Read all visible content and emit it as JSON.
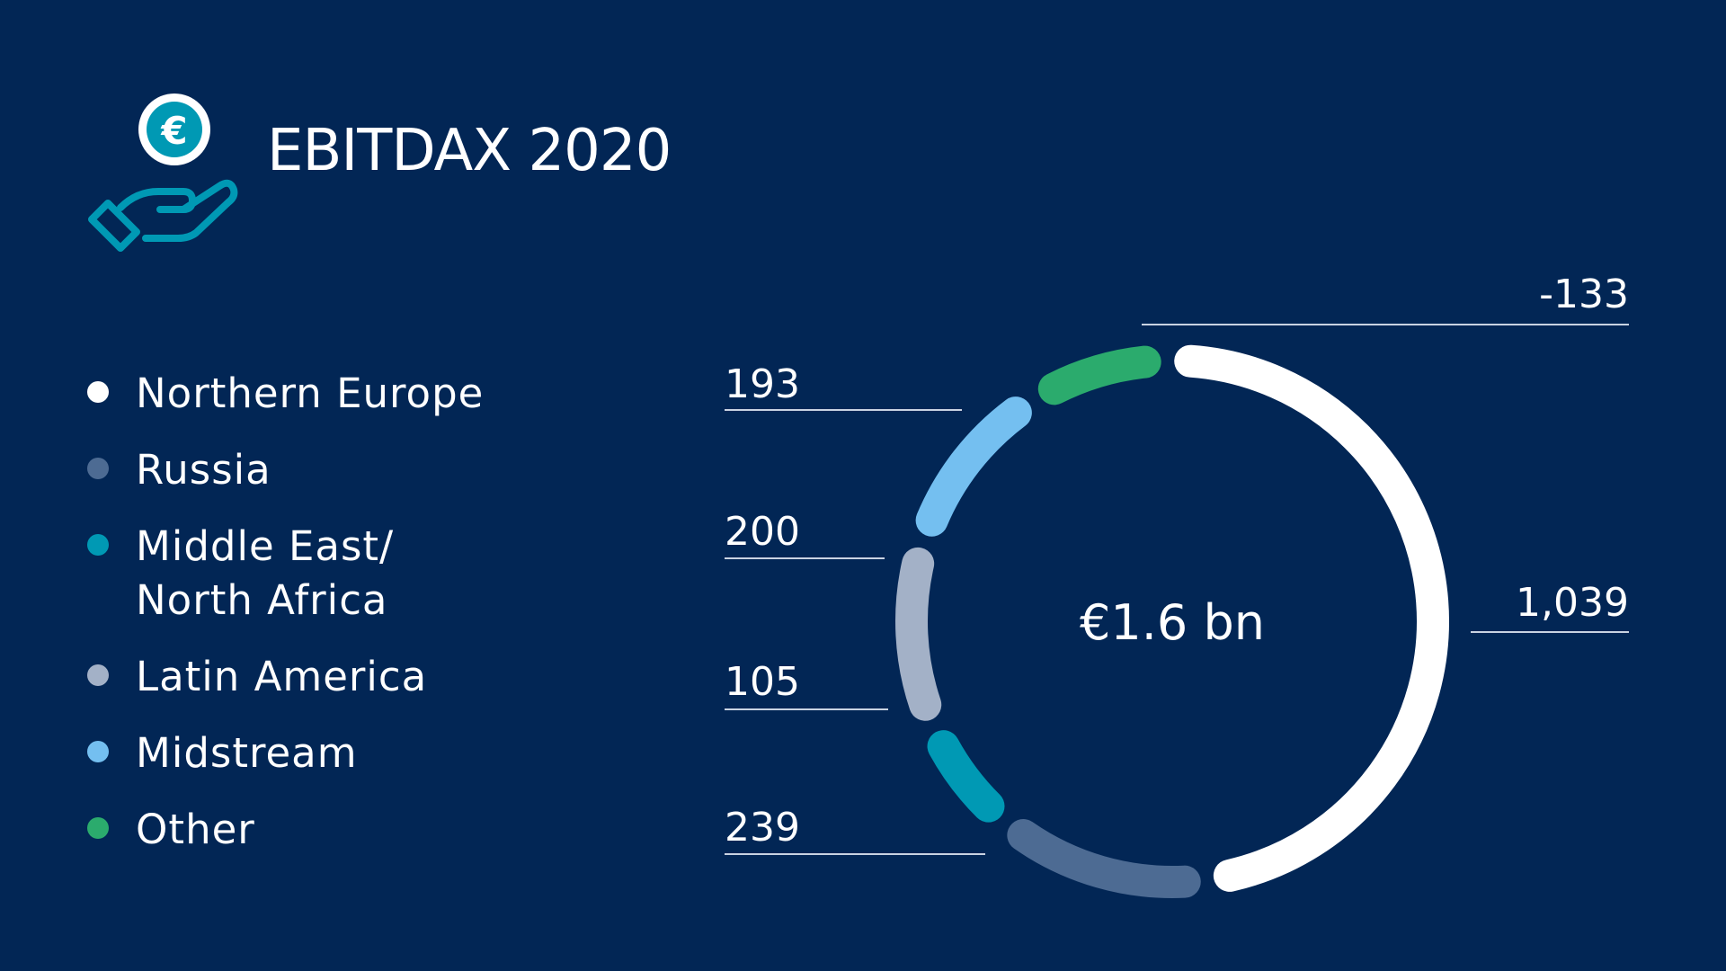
{
  "header": {
    "title": "EBITDAX 2020",
    "icon": "hand-euro-coin-icon"
  },
  "chart_data": {
    "type": "donut",
    "center_label": "€1.6 bn",
    "categories": [
      "Northern Europe",
      "Russia",
      "Middle East/\nNorth Africa",
      "Latin America",
      "Midstream",
      "Other"
    ],
    "values": [
      1039,
      239,
      105,
      200,
      193,
      -133
    ],
    "value_labels": [
      "1,039",
      "239",
      "105",
      "200",
      "193",
      "-133"
    ],
    "colors": [
      "#ffffff",
      "#4d6b93",
      "#0099b4",
      "#a3b1c7",
      "#74bff0",
      "#2bab6d"
    ]
  }
}
